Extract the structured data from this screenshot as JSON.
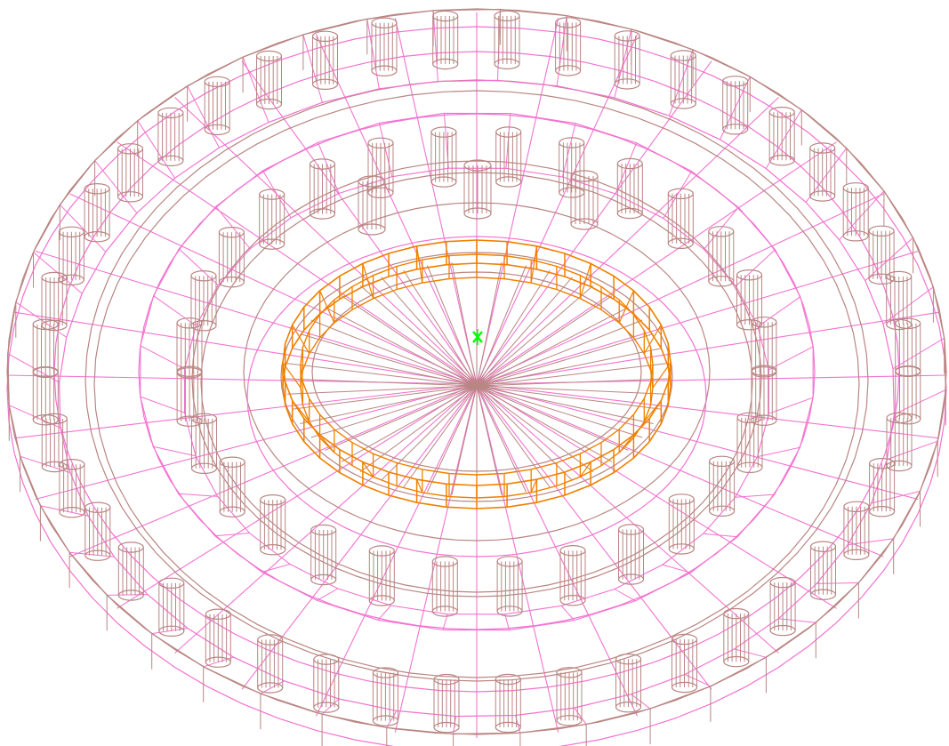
{
  "colors": {
    "background": "#ffffff",
    "rings": "#b98683",
    "spokes": "#f472d0",
    "columns": "#b98683",
    "inner_ring": "#f08000",
    "marker": "#00ff00"
  },
  "model": {
    "outer_columns": 44,
    "middle_columns": 28,
    "inner_columns": 16,
    "inner_ring_bays": 40,
    "radial_spokes": 36
  },
  "origin_marker": {
    "icon": "origin-cross-icon"
  }
}
